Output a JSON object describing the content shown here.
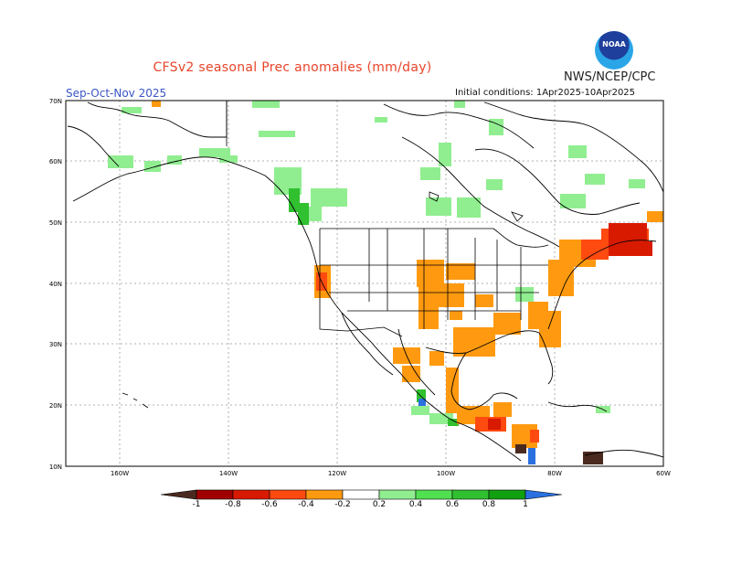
{
  "header": {
    "title": "CFSv2 seasonal Prec anomalies (mm/day)",
    "agency": "NWS/NCEP/CPC",
    "logo_text": "NOAA",
    "season": "Sep-Oct-Nov 2025",
    "initial_conditions": "Initial conditions: 1Apr2025-10Apr2025"
  },
  "map": {
    "lat_labels": [
      "70N",
      "60N",
      "50N",
      "40N",
      "30N",
      "20N",
      "10N"
    ],
    "lon_labels": [
      "160W",
      "140W",
      "120W",
      "100W",
      "80W",
      "60W"
    ]
  },
  "colorbar": {
    "labels": [
      "-1",
      "-0.8",
      "-0.6",
      "-0.4",
      "-0.2",
      "0.2",
      "0.4",
      "0.6",
      "0.8",
      "1"
    ],
    "colors": [
      "#4a2a1f",
      "#a00000",
      "#d81a00",
      "#ff4a10",
      "#ff9a10",
      "#ffffff",
      "#90ee90",
      "#50e050",
      "#30c030",
      "#10a010",
      "#2a70e0"
    ]
  }
}
